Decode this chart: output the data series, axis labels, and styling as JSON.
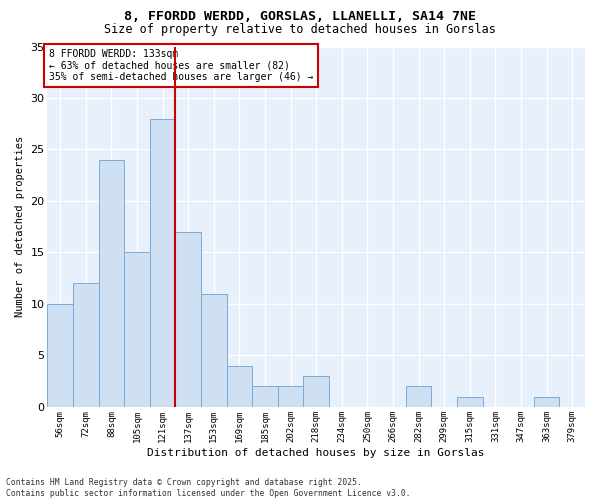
{
  "title_line1": "8, FFORDD WERDD, GORSLAS, LLANELLI, SA14 7NE",
  "title_line2": "Size of property relative to detached houses in Gorslas",
  "categories": [
    "56sqm",
    "72sqm",
    "88sqm",
    "105sqm",
    "121sqm",
    "137sqm",
    "153sqm",
    "169sqm",
    "185sqm",
    "202sqm",
    "218sqm",
    "234sqm",
    "250sqm",
    "266sqm",
    "282sqm",
    "299sqm",
    "315sqm",
    "331sqm",
    "347sqm",
    "363sqm",
    "379sqm"
  ],
  "values": [
    10,
    12,
    24,
    15,
    28,
    17,
    11,
    4,
    2,
    2,
    3,
    0,
    0,
    0,
    2,
    0,
    1,
    0,
    0,
    1,
    0
  ],
  "bar_color": "#cfe0f3",
  "bar_edge_color": "#7aabdb",
  "xlabel": "Distribution of detached houses by size in Gorslas",
  "ylabel": "Number of detached properties",
  "ylim": [
    0,
    35
  ],
  "yticks": [
    0,
    5,
    10,
    15,
    20,
    25,
    30,
    35
  ],
  "subject_line_color": "#cc0000",
  "annotation_text": "8 FFORDD WERDD: 133sqm\n← 63% of detached houses are smaller (82)\n35% of semi-detached houses are larger (46) →",
  "annotation_box_color": "#ffffff",
  "annotation_box_edge_color": "#cc0000",
  "footer_text": "Contains HM Land Registry data © Crown copyright and database right 2025.\nContains public sector information licensed under the Open Government Licence v3.0.",
  "fig_bg_color": "#ffffff",
  "plot_bg_color": "#e8f0fb",
  "grid_color": "#ffffff"
}
